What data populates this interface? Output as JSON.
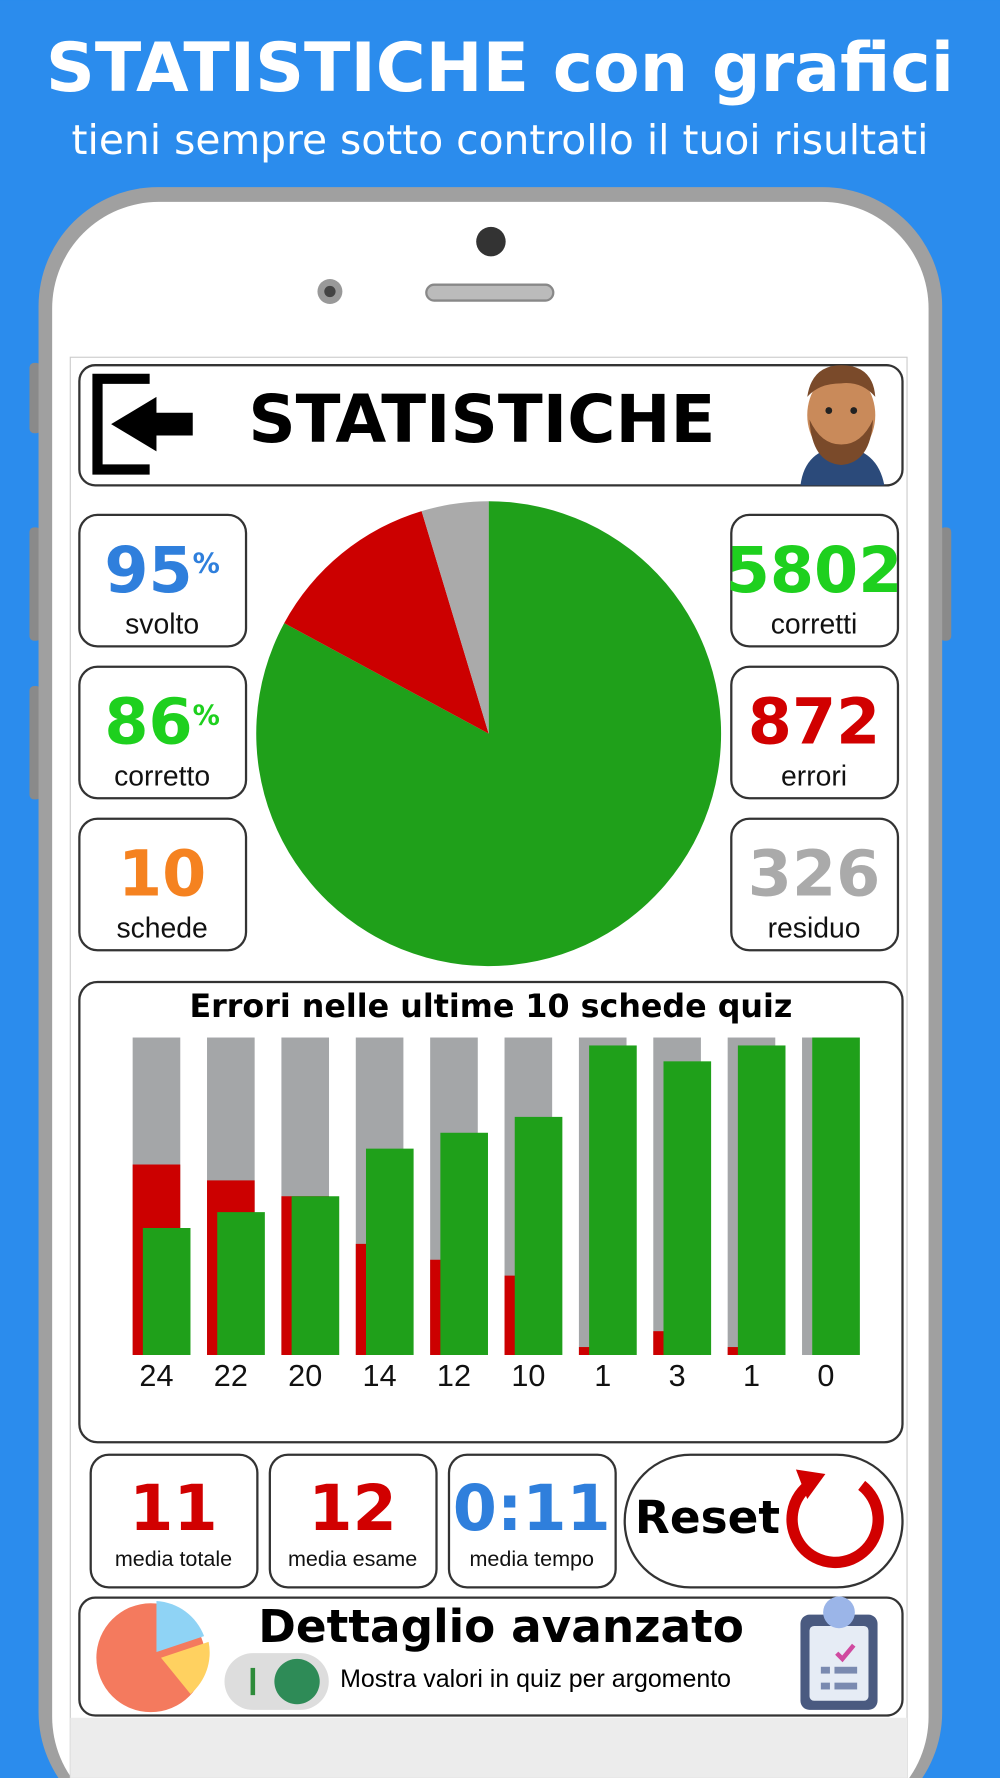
{
  "banner": {
    "title": "STATISTICHE con grafici",
    "subtitle": "tieni sempre sotto controllo il tuoi risultati"
  },
  "header": {
    "title": "STATISTICHE"
  },
  "stats": [
    {
      "value": 95,
      "unit": "%",
      "label": "svolto",
      "color": "#2f7fdc"
    },
    {
      "value": 86,
      "unit": "%",
      "label": "corretto",
      "color": "#1ed01e"
    },
    {
      "value": 10,
      "label": "schede",
      "color": "#f58220"
    },
    {
      "value": 5802,
      "label": "corretti",
      "color": "#1ed01e"
    },
    {
      "value": 872,
      "label": "errori",
      "color": "#d10000"
    },
    {
      "value": 326,
      "label": "residuo",
      "color": "#aaaaaa"
    }
  ],
  "pie": {
    "type": "pie",
    "colors": [
      "#1fa01a",
      "#cc0000",
      "#aaaaaa"
    ]
  },
  "chart_data": {
    "type": "bar",
    "title": "Errori nelle ultime 10 schede quiz",
    "ylim": [
      0,
      40
    ],
    "track_color": "#a4a6a8",
    "series": [
      {
        "name": "errori",
        "color": "#cc0000",
        "values": [
          24,
          22,
          20,
          14,
          12,
          10,
          1,
          3,
          1,
          0
        ]
      },
      {
        "name": "corretti",
        "color": "#1fa01a",
        "values": [
          16,
          18,
          20,
          26,
          28,
          30,
          39,
          37,
          39,
          40
        ]
      }
    ]
  },
  "averages": [
    {
      "value": 11,
      "label": "media totale",
      "color": "#d10000"
    },
    {
      "value": 12,
      "label": "media esame",
      "color": "#d10000"
    },
    {
      "value": "0:11",
      "label": "media tempo",
      "color": "#2f7fdc"
    }
  ],
  "reset": {
    "label": "Reset"
  },
  "advanced": {
    "title": "Dettaglio avanzato",
    "description": "Mostra valori in quiz per argomento"
  }
}
